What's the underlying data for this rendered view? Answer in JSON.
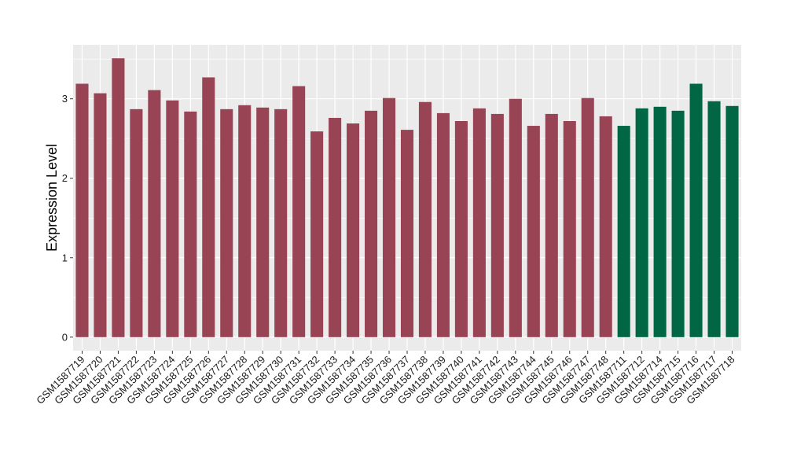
{
  "chart_data": {
    "type": "bar",
    "title": "",
    "xlabel": "",
    "ylabel": "Expression Level",
    "ylim": [
      -0.17,
      3.68
    ],
    "yticks": [
      0,
      1,
      2,
      3
    ],
    "grid": true,
    "legend": "none",
    "categories": [
      "GSM1587719",
      "GSM1587720",
      "GSM1587721",
      "GSM1587722",
      "GSM1587723",
      "GSM1587724",
      "GSM1587725",
      "GSM1587726",
      "GSM1587727",
      "GSM1587728",
      "GSM1587729",
      "GSM1587730",
      "GSM1587731",
      "GSM1587732",
      "GSM1587733",
      "GSM1587734",
      "GSM1587735",
      "GSM1587736",
      "GSM1587737",
      "GSM1587738",
      "GSM1587739",
      "GSM1587740",
      "GSM1587741",
      "GSM1587742",
      "GSM1587743",
      "GSM1587744",
      "GSM1587745",
      "GSM1587746",
      "GSM1587747",
      "GSM1587748",
      "GSM1587711",
      "GSM1587712",
      "GSM1587714",
      "GSM1587715",
      "GSM1587716",
      "GSM1587717",
      "GSM1587718"
    ],
    "values": [
      3.19,
      3.07,
      3.51,
      2.87,
      3.11,
      2.98,
      2.84,
      3.27,
      2.87,
      2.92,
      2.89,
      2.87,
      3.16,
      2.59,
      2.76,
      2.69,
      2.85,
      3.01,
      2.61,
      2.96,
      2.82,
      2.72,
      2.88,
      2.81,
      3.0,
      2.66,
      2.81,
      2.72,
      3.01,
      2.78,
      2.66,
      2.88,
      2.9,
      2.85,
      3.19,
      2.97,
      2.91
    ],
    "groups": [
      0,
      0,
      0,
      0,
      0,
      0,
      0,
      0,
      0,
      0,
      0,
      0,
      0,
      0,
      0,
      0,
      0,
      0,
      0,
      0,
      0,
      0,
      0,
      0,
      0,
      0,
      0,
      0,
      0,
      0,
      1,
      1,
      1,
      1,
      1,
      1,
      1
    ],
    "colors": {
      "group0": "#994455",
      "group1": "#006644",
      "panel": "#ebebeb",
      "gridline": "#ffffff"
    }
  }
}
